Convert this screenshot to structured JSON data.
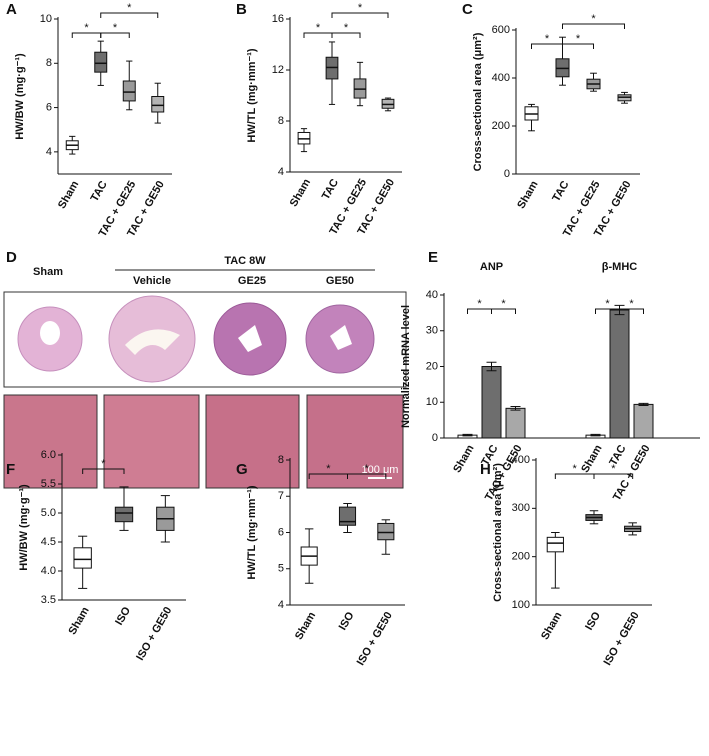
{
  "chart_data": [
    {
      "type": "box",
      "panel": "A",
      "ylabel": "HW/BW (mg·g⁻¹)",
      "categories": [
        "Sham",
        "TAC",
        "TAC + GE25",
        "TAC + GE50"
      ],
      "colors": [
        "#ffffff",
        "#6e6e6e",
        "#9a9a9a",
        "#b4b4b4"
      ],
      "min": [
        3.9,
        7.0,
        5.9,
        5.3
      ],
      "q1": [
        4.1,
        7.6,
        6.3,
        5.8
      ],
      "median": [
        4.3,
        8.0,
        6.7,
        6.1
      ],
      "q3": [
        4.5,
        8.5,
        7.2,
        6.5
      ],
      "max": [
        4.7,
        9.0,
        8.1,
        7.1
      ],
      "ylim": [
        3,
        10
      ],
      "yticks": [
        4,
        6,
        8,
        10
      ],
      "brackets": [
        {
          "from": 0,
          "to": 1,
          "label": "*"
        },
        {
          "from": 1,
          "to": 2,
          "label": "*"
        },
        {
          "from": 1,
          "to": 3,
          "label": "*"
        }
      ]
    },
    {
      "type": "box",
      "panel": "B",
      "ylabel": "HW/TL (mg·mm⁻¹)",
      "categories": [
        "Sham",
        "TAC",
        "TAC + GE25",
        "TAC + GE50"
      ],
      "colors": [
        "#ffffff",
        "#6e6e6e",
        "#9a9a9a",
        "#b4b4b4"
      ],
      "min": [
        5.6,
        9.3,
        9.2,
        8.8
      ],
      "q1": [
        6.2,
        11.3,
        9.8,
        9.0
      ],
      "median": [
        6.6,
        12.2,
        10.5,
        9.3
      ],
      "q3": [
        7.1,
        13.0,
        11.3,
        9.7
      ],
      "max": [
        7.4,
        14.2,
        12.6,
        9.8
      ],
      "ylim": [
        4,
        16
      ],
      "yticks": [
        4,
        8,
        12,
        16
      ],
      "brackets": [
        {
          "from": 0,
          "to": 1,
          "label": "*"
        },
        {
          "from": 1,
          "to": 2,
          "label": "*"
        },
        {
          "from": 1,
          "to": 3,
          "label": "*"
        }
      ]
    },
    {
      "type": "box",
      "panel": "C",
      "ylabel": "Cross-sectional area (μm²)",
      "categories": [
        "Sham",
        "TAC",
        "TAC + GE25",
        "TAC + GE50"
      ],
      "colors": [
        "#ffffff",
        "#6e6e6e",
        "#9a9a9a",
        "#b4b4b4"
      ],
      "min": [
        180,
        370,
        345,
        295
      ],
      "q1": [
        225,
        405,
        355,
        305
      ],
      "median": [
        250,
        440,
        375,
        320
      ],
      "q3": [
        280,
        480,
        395,
        330
      ],
      "max": [
        290,
        570,
        420,
        340
      ],
      "ylim": [
        0,
        600
      ],
      "yticks": [
        0,
        200,
        400,
        600
      ],
      "brackets": [
        {
          "from": 0,
          "to": 1,
          "label": "*"
        },
        {
          "from": 1,
          "to": 2,
          "label": "*"
        },
        {
          "from": 1,
          "to": 3,
          "label": "*"
        }
      ]
    },
    {
      "type": "groupbar",
      "panel": "E",
      "ylabel": "Normalized mRNA level",
      "categories": [
        "Sham",
        "TAC",
        "TAC + GE50"
      ],
      "colors": [
        "#ffffff",
        "#6e6e6e",
        "#a8a8a8"
      ],
      "groups": [
        {
          "name": "ANP",
          "values": [
            0.8,
            20,
            8.3
          ],
          "errors": [
            0.2,
            1.2,
            0.5
          ]
        },
        {
          "name": "β-MHC",
          "values": [
            0.8,
            35.8,
            9.4
          ],
          "errors": [
            0.2,
            1.3,
            0.3
          ]
        }
      ],
      "ylim": [
        0,
        40
      ],
      "yticks": [
        0,
        10,
        20,
        30,
        40
      ],
      "brackets": [
        {
          "from": 0,
          "to": 1,
          "label": "*"
        },
        {
          "from": 1,
          "to": 2,
          "label": "*"
        }
      ]
    },
    {
      "type": "box",
      "panel": "F",
      "ylabel": "HW/BW (mg·g⁻¹)",
      "categories": [
        "Sham",
        "ISO",
        "ISO + GE50"
      ],
      "colors": [
        "#ffffff",
        "#6e6e6e",
        "#9a9a9a"
      ],
      "min": [
        3.7,
        4.7,
        4.5
      ],
      "q1": [
        4.05,
        4.85,
        4.7
      ],
      "median": [
        4.2,
        5.0,
        4.9
      ],
      "q3": [
        4.4,
        5.1,
        5.1
      ],
      "max": [
        4.6,
        5.45,
        5.3
      ],
      "ylim": [
        3.5,
        6.0
      ],
      "yticks": [
        3.5,
        {
          "value": 4,
          "label": "4.0"
        },
        4.5,
        {
          "value": 5,
          "label": "5.0"
        },
        5.5,
        {
          "value": 6,
          "label": "6.0"
        }
      ],
      "brackets": [
        {
          "from": 0,
          "to": 1,
          "label": "*"
        }
      ]
    },
    {
      "type": "box",
      "panel": "G",
      "ylabel": "HW/TL (mg·mm⁻¹)",
      "categories": [
        "Sham",
        "ISO",
        "ISO + GE50"
      ],
      "colors": [
        "#ffffff",
        "#6e6e6e",
        "#9a9a9a"
      ],
      "min": [
        4.6,
        6.0,
        5.4
      ],
      "q1": [
        5.1,
        6.2,
        5.8
      ],
      "median": [
        5.35,
        6.3,
        6.0
      ],
      "q3": [
        5.6,
        6.7,
        6.25
      ],
      "max": [
        6.1,
        6.8,
        6.35
      ],
      "ylim": [
        4,
        8
      ],
      "yticks": [
        4,
        5,
        6,
        7,
        8
      ],
      "brackets": [
        {
          "from": 0,
          "to": 1,
          "label": "*"
        },
        {
          "from": 1,
          "to": 2,
          "label": "*"
        }
      ]
    },
    {
      "type": "box",
      "panel": "H",
      "ylabel": "Cross-sectional area (μm²)",
      "categories": [
        "Sham",
        "ISO",
        "ISO + GE50"
      ],
      "colors": [
        "#ffffff",
        "#6e6e6e",
        "#9a9a9a"
      ],
      "min": [
        135,
        268,
        245
      ],
      "q1": [
        210,
        275,
        252
      ],
      "median": [
        228,
        281,
        258
      ],
      "q3": [
        240,
        287,
        263
      ],
      "max": [
        250,
        295,
        270
      ],
      "ylim": [
        100,
        400
      ],
      "yticks": [
        100,
        200,
        300,
        400
      ],
      "brackets": [
        {
          "from": 0,
          "to": 1,
          "label": "*"
        },
        {
          "from": 1,
          "to": 2,
          "label": "*"
        }
      ]
    }
  ],
  "panel_d": {
    "panel": "D",
    "group": "TAC 8W",
    "columns": [
      "Sham",
      "Vehicle",
      "GE25",
      "GE50"
    ],
    "scale_bar": "100 μm"
  }
}
